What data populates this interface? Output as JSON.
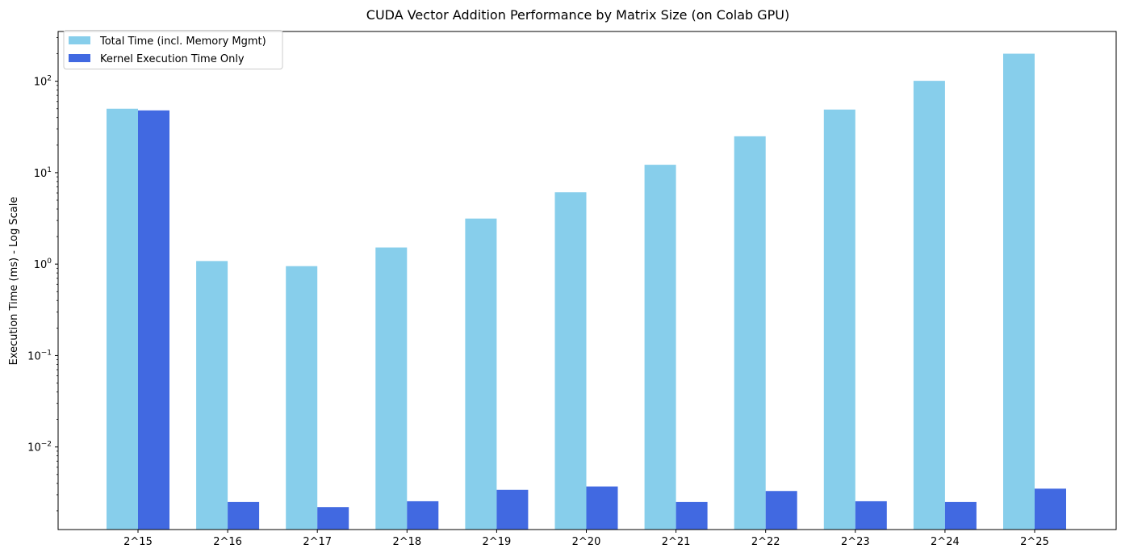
{
  "chart_data": {
    "type": "bar",
    "title": "CUDA Vector Addition Performance by Matrix Size (on Colab GPU)",
    "xlabel": "",
    "ylabel": "Execution Time (ms) - Log Scale",
    "yscale": "log",
    "ylim": [
      0.00125,
      350
    ],
    "yticks": [
      {
        "base": "10",
        "exp": "2",
        "value": 100
      },
      {
        "base": "10",
        "exp": "1",
        "value": 10
      },
      {
        "base": "10",
        "exp": "0",
        "value": 1
      },
      {
        "base": "10",
        "exp": "−1",
        "value": 0.1
      },
      {
        "base": "10",
        "exp": "−2",
        "value": 0.01
      }
    ],
    "categories": [
      "2^15",
      "2^16",
      "2^17",
      "2^18",
      "2^19",
      "2^20",
      "2^21",
      "2^22",
      "2^23",
      "2^24",
      "2^25"
    ],
    "series": [
      {
        "name": "Total Time (incl. Memory Mgmt)",
        "color": "#87ceeb",
        "values": [
          50,
          1.08,
          0.95,
          1.52,
          3.15,
          6.1,
          12.2,
          25,
          49,
          101,
          200
        ]
      },
      {
        "name": "Kernel Execution Time Only",
        "color": "#4169e1",
        "values": [
          48,
          0.0025,
          0.0022,
          0.00255,
          0.0034,
          0.0037,
          0.0025,
          0.0033,
          0.00255,
          0.0025,
          0.0035
        ]
      }
    ],
    "legend_position": "top-left",
    "grid": false
  }
}
